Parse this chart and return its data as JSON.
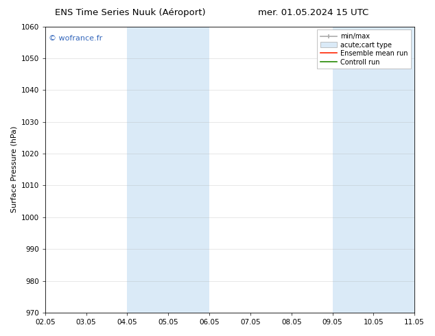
{
  "title_left": "ENS Time Series Nuuk (Aéroport)",
  "title_right": "mer. 01.05.2024 15 UTC",
  "ylabel": "Surface Pressure (hPa)",
  "ylim": [
    970,
    1060
  ],
  "yticks": [
    970,
    980,
    990,
    1000,
    1010,
    1020,
    1030,
    1040,
    1050,
    1060
  ],
  "xtick_labels": [
    "02.05",
    "03.05",
    "04.05",
    "05.05",
    "06.05",
    "07.05",
    "08.05",
    "09.05",
    "10.05",
    "11.05"
  ],
  "xtick_values": [
    0,
    1,
    2,
    3,
    4,
    5,
    6,
    7,
    8,
    9
  ],
  "shaded_regions": [
    {
      "x_start": 2,
      "x_end": 3,
      "color": "#daeaf7"
    },
    {
      "x_start": 3,
      "x_end": 4,
      "color": "#daeaf7"
    },
    {
      "x_start": 7,
      "x_end": 8,
      "color": "#daeaf7"
    },
    {
      "x_start": 8,
      "x_end": 9,
      "color": "#daeaf7"
    }
  ],
  "watermark_text": "© wofrance.fr",
  "watermark_color": "#3366bb",
  "background_color": "#ffffff",
  "plot_bg_color": "#ffffff",
  "legend_labels": [
    "min/max",
    "acute;cart type",
    "Ensemble mean run",
    "Controll run"
  ],
  "legend_colors_line": [
    "#aaaaaa",
    null,
    "#ff2200",
    "#228800"
  ],
  "legend_patch_color": "#daeaf7",
  "grid_color": "#aaaaaa",
  "grid_alpha": 0.4,
  "title_fontsize": 9.5,
  "axis_label_fontsize": 8,
  "tick_fontsize": 7.5
}
